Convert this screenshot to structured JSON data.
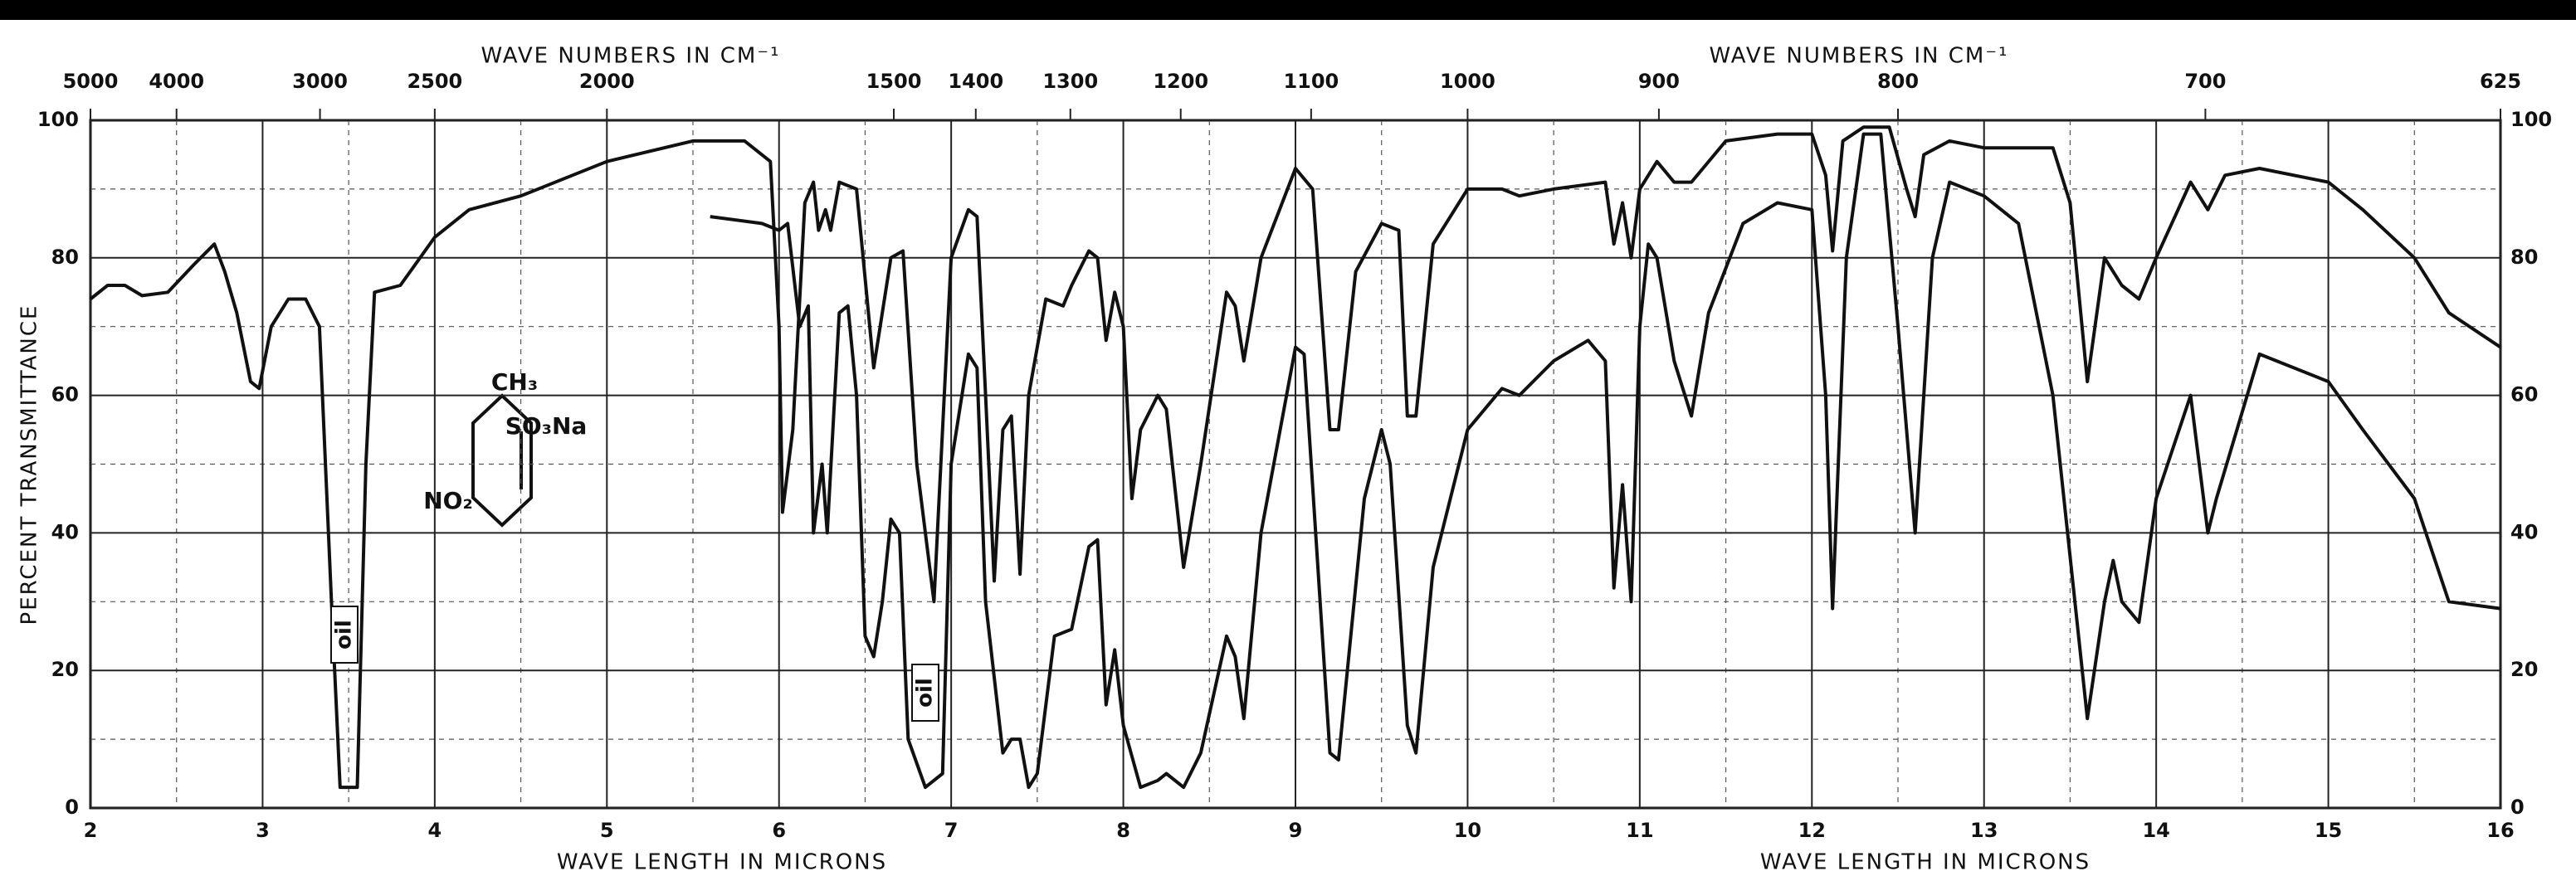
{
  "chart_data": {
    "type": "line",
    "x_label": "WAVE LENGTH IN MICRONS",
    "x2_label": "WAVE NUMBERS IN CM⁻¹",
    "y_label": "PERCENT TRANSMITTANCE",
    "xlim": [
      2,
      16
    ],
    "xticks": [
      2,
      3,
      4,
      5,
      6,
      7,
      8,
      9,
      10,
      11,
      12,
      13,
      14,
      15,
      16
    ],
    "xminorticks": [
      2.5,
      3.5,
      4.5,
      5.5,
      6.5,
      7.5,
      8.5,
      9.5,
      10.5,
      11.5,
      12.5,
      13.5,
      14.5,
      15.5
    ],
    "x2lim": [
      5000,
      625
    ],
    "x2ticks": [
      5000,
      4000,
      3000,
      2500,
      2000,
      1500,
      1400,
      1300,
      1200,
      1100,
      1000,
      900,
      800,
      700,
      625
    ],
    "ylim": [
      0,
      100
    ],
    "yticks": [
      0,
      20,
      40,
      60,
      80,
      100
    ],
    "yminorticks": [
      10,
      30,
      50,
      70,
      90
    ],
    "grid": true,
    "annotations": [
      "oil",
      "oil",
      "CH₃",
      "SO₃Na",
      "NO₂"
    ],
    "series": [
      {
        "color": "#111111",
        "x": [
          2.0,
          2.1,
          2.2,
          2.3,
          2.45,
          2.6,
          2.72,
          2.78,
          2.85,
          2.93,
          2.98,
          3.05,
          3.15,
          3.25,
          3.33,
          3.4,
          3.45,
          3.55,
          3.6,
          3.65,
          3.8,
          4.0,
          4.2,
          4.5,
          5.0,
          5.5,
          5.8,
          5.95,
          6.0,
          6.02,
          6.08,
          6.15,
          6.2,
          6.23,
          6.27,
          6.3,
          6.35,
          6.45,
          6.55,
          6.65,
          6.72,
          6.8,
          6.9,
          7.0,
          7.1,
          7.15,
          7.2,
          7.25,
          7.3,
          7.35,
          7.4,
          7.45,
          7.55,
          7.65,
          7.7,
          7.8,
          7.85,
          7.9,
          7.95,
          8.0,
          8.05,
          8.1,
          8.2,
          8.25,
          8.35,
          8.45,
          8.6,
          8.65,
          8.7,
          8.8,
          9.0,
          9.1,
          9.2,
          9.25,
          9.35,
          9.5,
          9.6,
          9.65,
          9.7,
          9.8,
          10.0,
          10.2,
          10.3,
          10.5,
          10.8,
          10.85,
          10.9,
          10.95,
          11.0,
          11.1,
          11.2,
          11.3,
          11.5,
          11.8,
          12.0,
          12.08,
          12.12,
          12.18,
          12.3,
          12.45,
          12.55,
          12.6,
          12.65,
          12.8,
          13.0,
          13.4,
          13.5,
          13.6,
          13.7,
          13.8,
          13.9,
          14.0,
          14.2,
          14.3,
          14.4,
          14.6,
          15.0,
          15.2,
          15.5,
          15.7,
          16.0
        ],
        "values": [
          74,
          76,
          76,
          74.5,
          75,
          79,
          82,
          78,
          72,
          62,
          61,
          70,
          74,
          74,
          70,
          30,
          3,
          3,
          50,
          75,
          76,
          83,
          87,
          89,
          94,
          97,
          97,
          94,
          70,
          43,
          55,
          88,
          91,
          84,
          87,
          84,
          91,
          90,
          64,
          80,
          81,
          50,
          30,
          80,
          87,
          86,
          60,
          33,
          55,
          57,
          34,
          60,
          74,
          73,
          76,
          81,
          80,
          68,
          75,
          70,
          45,
          55,
          60,
          58,
          35,
          50,
          75,
          73,
          65,
          80,
          93,
          90,
          55,
          55,
          78,
          85,
          84,
          57,
          57,
          82,
          90,
          90,
          89,
          90,
          91,
          82,
          88,
          80,
          90,
          94,
          91,
          91,
          97,
          98,
          98,
          92,
          81,
          97,
          99,
          99,
          90,
          86,
          95,
          97,
          96,
          96,
          88,
          62,
          80,
          76,
          74,
          80,
          91,
          87,
          92,
          93,
          91,
          87,
          80,
          72,
          67
        ]
      },
      {
        "color": "#111111",
        "x": [
          5.6,
          5.9,
          6.0,
          6.05,
          6.12,
          6.17,
          6.2,
          6.25,
          6.28,
          6.35,
          6.4,
          6.45,
          6.5,
          6.55,
          6.6,
          6.65,
          6.7,
          6.75,
          6.85,
          6.95,
          7.0,
          7.1,
          7.15,
          7.2,
          7.3,
          7.35,
          7.4,
          7.45,
          7.5,
          7.6,
          7.7,
          7.8,
          7.85,
          7.9,
          7.95,
          8.0,
          8.1,
          8.2,
          8.25,
          8.35,
          8.45,
          8.6,
          8.65,
          8.7,
          8.8,
          9.0,
          9.05,
          9.2,
          9.25,
          9.4,
          9.5,
          9.55,
          9.65,
          9.7,
          9.8,
          10.0,
          10.2,
          10.3,
          10.5,
          10.7,
          10.8,
          10.85,
          10.9,
          10.95,
          11.0,
          11.05,
          11.1,
          11.2,
          11.3,
          11.4,
          11.6,
          11.8,
          12.0,
          12.08,
          12.12,
          12.2,
          12.3,
          12.4,
          12.5,
          12.6,
          12.7,
          12.8,
          13.0,
          13.2,
          13.4,
          13.6,
          13.7,
          13.75,
          13.8,
          13.9,
          14.0,
          14.2,
          14.3,
          14.35,
          14.6,
          15.0,
          15.2,
          15.5,
          15.7,
          16.0
        ],
        "values": [
          86,
          85,
          84,
          85,
          70,
          73,
          40,
          50,
          40,
          72,
          73,
          60,
          25,
          22,
          30,
          42,
          40,
          10,
          3,
          5,
          50,
          66,
          64,
          30,
          8,
          10,
          10,
          3,
          5,
          25,
          26,
          38,
          39,
          15,
          23,
          12,
          3,
          4,
          5,
          3,
          8,
          25,
          22,
          13,
          40,
          67,
          66,
          8,
          7,
          45,
          55,
          50,
          12,
          8,
          35,
          55,
          61,
          60,
          65,
          68,
          65,
          32,
          47,
          30,
          70,
          82,
          80,
          65,
          57,
          72,
          85,
          88,
          87,
          60,
          29,
          80,
          98,
          98,
          70,
          40,
          80,
          91,
          89,
          85,
          60,
          13,
          30,
          36,
          30,
          27,
          45,
          60,
          40,
          45,
          66,
          62,
          55,
          45,
          30,
          29
        ]
      }
    ]
  }
}
